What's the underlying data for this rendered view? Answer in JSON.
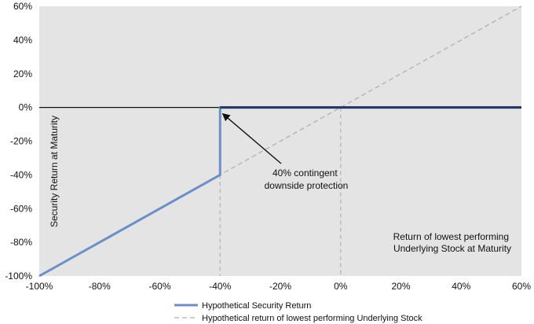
{
  "chart_data": {
    "type": "line",
    "x": [
      -100,
      -40,
      -40,
      0,
      60
    ],
    "series": [
      {
        "name": "Hypothetical Security Return",
        "points": [
          [
            -100,
            -100
          ],
          [
            -40,
            -40
          ],
          [
            -40,
            0
          ],
          [
            0,
            0
          ],
          [
            60,
            0
          ]
        ],
        "color": "#6b8fc9",
        "style": "solid"
      },
      {
        "name": "Hypothetical return of lowest performing Underlying Stock",
        "points": [
          [
            -100,
            -100
          ],
          [
            60,
            60
          ]
        ],
        "color": "#b0b0b0",
        "style": "dashed"
      }
    ],
    "xlim": [
      -100,
      60
    ],
    "ylim": [
      -100,
      60
    ],
    "x_ticks": [
      -100,
      -80,
      -60,
      -40,
      -20,
      0,
      20,
      40,
      60
    ],
    "y_ticks": [
      60,
      40,
      20,
      0,
      -20,
      -40,
      -60,
      -80,
      -100
    ],
    "x_tick_labels": [
      "-100%",
      "-80%",
      "-60%",
      "-40%",
      "-20%",
      "0%",
      "20%",
      "40%",
      "60%"
    ],
    "y_tick_labels": [
      "60%",
      "40%",
      "20%",
      "0%",
      "-20%",
      "-40%",
      "-60%",
      "-80%",
      "-100%"
    ],
    "ylabel": "Security Return at Maturity",
    "xlabel_lines": [
      "Return of lowest performing",
      "Underlying Stock at Maturity"
    ],
    "annotation": {
      "lines": [
        "40% contingent",
        "downside protection"
      ],
      "arrow_target": [
        -40,
        -4
      ]
    },
    "reference_vlines": [
      -40,
      0
    ],
    "plot_background": "#e4e4e4",
    "zero_line_color": "#1f3864",
    "grid": false,
    "legend_position": "bottom"
  }
}
